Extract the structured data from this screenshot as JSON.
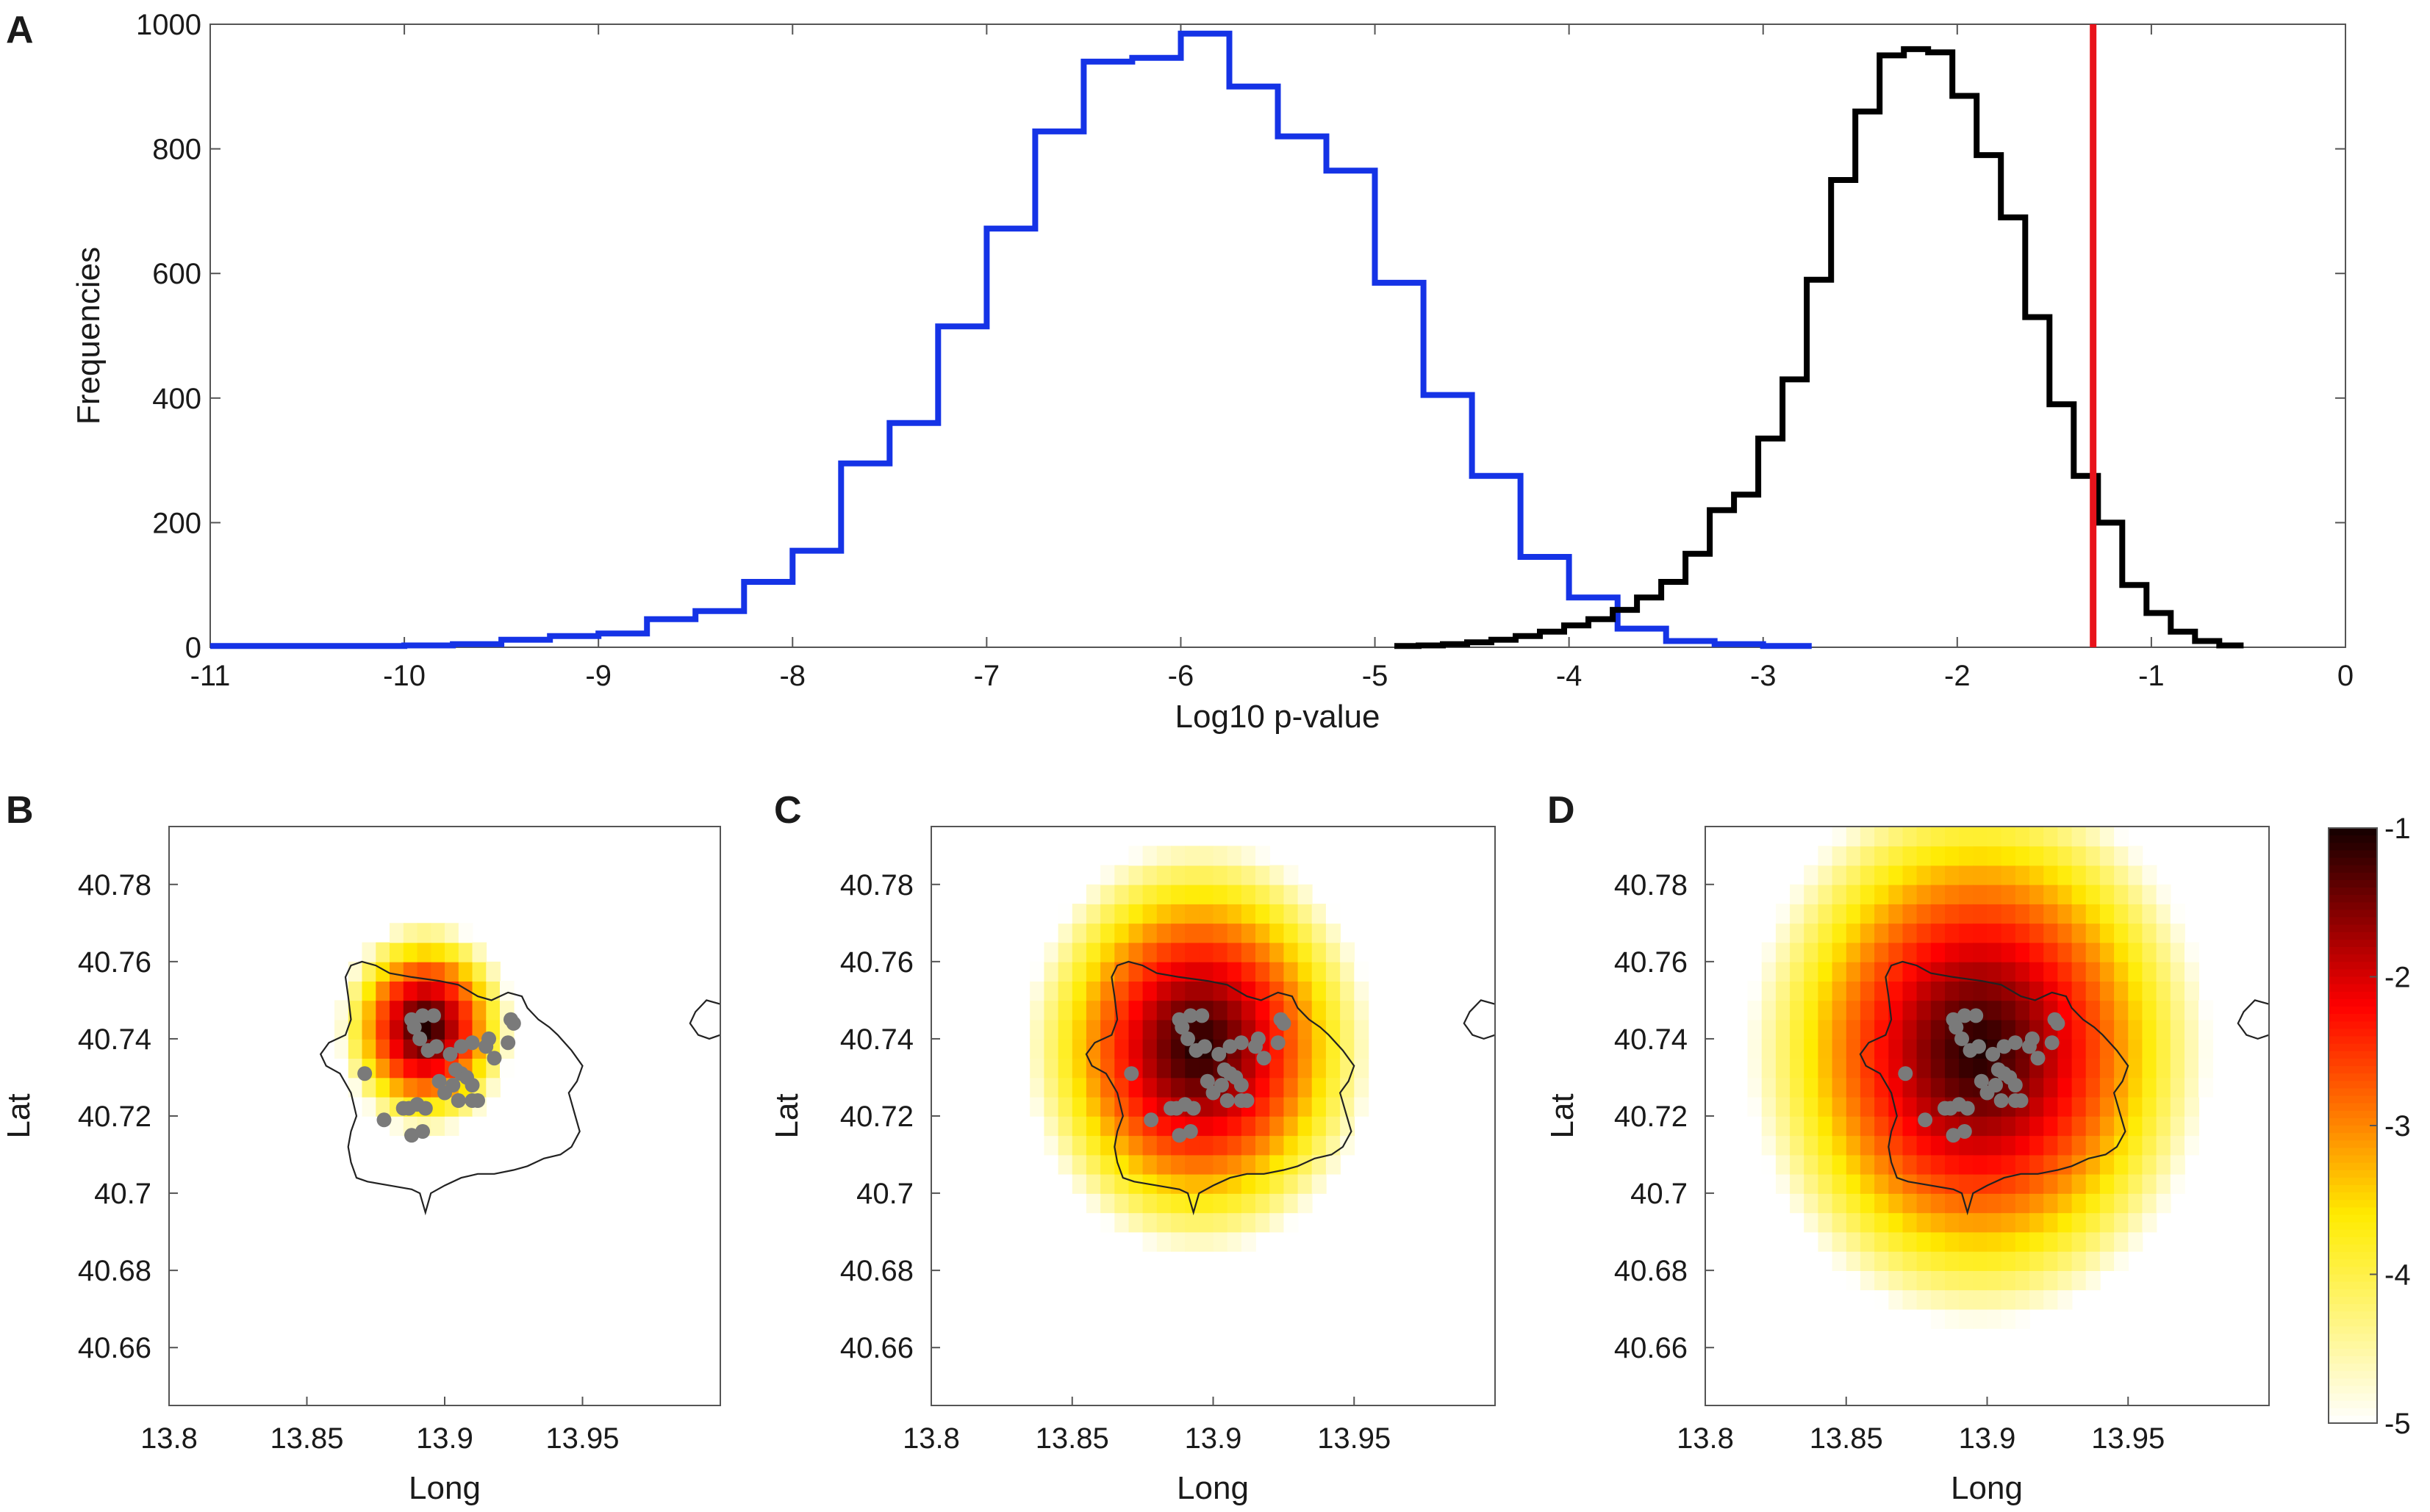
{
  "chart_data": [
    {
      "panel": "A",
      "type": "line",
      "subtype": "step histogram",
      "xlabel": "Log10 p-value",
      "ylabel": "Frequencies",
      "xlim": [
        -11,
        0
      ],
      "ylim": [
        0,
        1000
      ],
      "xticks": [
        "-11",
        "-10",
        "-9",
        "-8",
        "-7",
        "-6",
        "-5",
        "-4",
        "-3",
        "-2",
        "-1",
        "0"
      ],
      "yticks": [
        "0",
        "200",
        "400",
        "600",
        "800",
        "1000"
      ],
      "threshold_line": {
        "x": -1.3,
        "color": "#e8131b"
      },
      "series": [
        {
          "name": "blue",
          "color": "#1533e6",
          "bin_width": 0.25,
          "bin_start": -11,
          "values": [
            2,
            2,
            2,
            2,
            3,
            5,
            12,
            18,
            22,
            45,
            58,
            105,
            155,
            295,
            360,
            515,
            672,
            828,
            940,
            946,
            985,
            900,
            820,
            765,
            585,
            405,
            275,
            145,
            80,
            30,
            10,
            5,
            2
          ]
        },
        {
          "name": "black",
          "color": "#000000",
          "bin_width": 0.125,
          "bin_start": -4.9,
          "values": [
            2,
            3,
            5,
            8,
            12,
            18,
            25,
            35,
            45,
            60,
            80,
            105,
            150,
            220,
            245,
            335,
            430,
            590,
            750,
            860,
            950,
            960,
            955,
            885,
            790,
            690,
            530,
            390,
            275,
            200,
            100,
            55,
            25,
            10,
            3
          ]
        }
      ]
    },
    {
      "panel": "B",
      "type": "heatmap",
      "xlabel": "Long",
      "ylabel": "Lat",
      "xlim": [
        13.8,
        14.0
      ],
      "ylim": [
        40.645,
        40.795
      ],
      "xticks": [
        "13.8",
        "13.85",
        "13.9",
        "13.95"
      ],
      "yticks": [
        "40.66",
        "40.68",
        "40.7",
        "40.72",
        "40.74",
        "40.76",
        "40.78"
      ],
      "kernel_radius_deg": 0.032,
      "field_center": [
        13.893,
        40.743
      ]
    },
    {
      "panel": "C",
      "type": "heatmap",
      "xlabel": "Long",
      "ylabel": "Lat",
      "xlim": [
        13.8,
        14.0
      ],
      "ylim": [
        40.645,
        40.795
      ],
      "xticks": [
        "13.8",
        "13.85",
        "13.9",
        "13.95"
      ],
      "yticks": [
        "40.66",
        "40.68",
        "40.7",
        "40.72",
        "40.74",
        "40.76",
        "40.78"
      ],
      "kernel_radius_deg": 0.062,
      "field_center": [
        13.895,
        40.738
      ]
    },
    {
      "panel": "D",
      "type": "heatmap",
      "xlabel": "Long",
      "ylabel": "Lat",
      "xlim": [
        13.8,
        14.0
      ],
      "ylim": [
        40.645,
        40.795
      ],
      "xticks": [
        "13.8",
        "13.85",
        "13.9",
        "13.95"
      ],
      "yticks": [
        "40.66",
        "40.68",
        "40.7",
        "40.72",
        "40.74",
        "40.76",
        "40.78"
      ],
      "kernel_radius_deg": 0.082,
      "field_center": [
        13.897,
        40.737
      ]
    }
  ],
  "colorbar": {
    "min": -5,
    "max": -1,
    "ticks": [
      "-1",
      "-2",
      "-3",
      "-4",
      "-5"
    ],
    "colormap": "hot (reversed)"
  },
  "stations": [
    [
      13.888,
      40.745
    ],
    [
      13.889,
      40.743
    ],
    [
      13.892,
      40.746
    ],
    [
      13.896,
      40.746
    ],
    [
      13.891,
      40.74
    ],
    [
      13.894,
      40.737
    ],
    [
      13.897,
      40.738
    ],
    [
      13.902,
      40.736
    ],
    [
      13.906,
      40.738
    ],
    [
      13.91,
      40.739
    ],
    [
      13.904,
      40.732
    ],
    [
      13.906,
      40.731
    ],
    [
      13.908,
      40.73
    ],
    [
      13.91,
      40.728
    ],
    [
      13.903,
      40.728
    ],
    [
      13.898,
      40.729
    ],
    [
      13.9,
      40.726
    ],
    [
      13.905,
      40.724
    ],
    [
      13.91,
      40.724
    ],
    [
      13.912,
      40.724
    ],
    [
      13.915,
      40.738
    ],
    [
      13.916,
      40.74
    ],
    [
      13.924,
      40.745
    ],
    [
      13.925,
      40.744
    ],
    [
      13.923,
      40.739
    ],
    [
      13.918,
      40.735
    ],
    [
      13.871,
      40.731
    ],
    [
      13.878,
      40.719
    ],
    [
      13.885,
      40.722
    ],
    [
      13.887,
      40.722
    ],
    [
      13.89,
      40.723
    ],
    [
      13.893,
      40.722
    ],
    [
      13.888,
      40.715
    ],
    [
      13.892,
      40.716
    ]
  ],
  "coastline_lonlat": [
    [
      13.888,
      40.756
    ],
    [
      13.898,
      40.755
    ],
    [
      13.905,
      40.754
    ],
    [
      13.912,
      40.751
    ],
    [
      13.917,
      40.75
    ],
    [
      13.923,
      40.752
    ],
    [
      13.928,
      40.751
    ],
    [
      13.93,
      40.748
    ],
    [
      13.934,
      40.745
    ],
    [
      13.938,
      40.743
    ],
    [
      13.941,
      40.741
    ],
    [
      13.946,
      40.737
    ],
    [
      13.95,
      40.733
    ],
    [
      13.948,
      40.729
    ],
    [
      13.945,
      40.726
    ],
    [
      13.947,
      40.721
    ],
    [
      13.949,
      40.716
    ],
    [
      13.946,
      40.712
    ],
    [
      13.942,
      40.71
    ],
    [
      13.936,
      40.709
    ],
    [
      13.93,
      40.707
    ],
    [
      13.925,
      40.706
    ],
    [
      13.918,
      40.705
    ],
    [
      13.912,
      40.705
    ],
    [
      13.906,
      40.704
    ],
    [
      13.9,
      40.702
    ],
    [
      13.895,
      40.7
    ],
    [
      13.893,
      40.695
    ],
    [
      13.891,
      40.7
    ],
    [
      13.888,
      40.701
    ],
    [
      13.88,
      40.702
    ],
    [
      13.872,
      40.703
    ],
    [
      13.868,
      40.704
    ],
    [
      13.866,
      40.708
    ],
    [
      13.865,
      40.712
    ],
    [
      13.866,
      40.716
    ],
    [
      13.868,
      40.72
    ],
    [
      13.866,
      40.726
    ],
    [
      13.862,
      40.731
    ],
    [
      13.857,
      40.733
    ],
    [
      13.855,
      40.736
    ],
    [
      13.858,
      40.739
    ],
    [
      13.864,
      40.741
    ],
    [
      13.866,
      40.745
    ],
    [
      13.865,
      40.751
    ],
    [
      13.864,
      40.756
    ],
    [
      13.866,
      40.759
    ],
    [
      13.87,
      40.76
    ],
    [
      13.875,
      40.759
    ],
    [
      13.88,
      40.757
    ],
    [
      13.888,
      40.756
    ]
  ],
  "islet_lonlat": [
    [
      14.0,
      40.749
    ],
    [
      13.995,
      40.75
    ],
    [
      13.991,
      40.747
    ],
    [
      13.989,
      40.744
    ],
    [
      13.992,
      40.741
    ],
    [
      13.996,
      40.74
    ],
    [
      14.0,
      40.741
    ]
  ]
}
